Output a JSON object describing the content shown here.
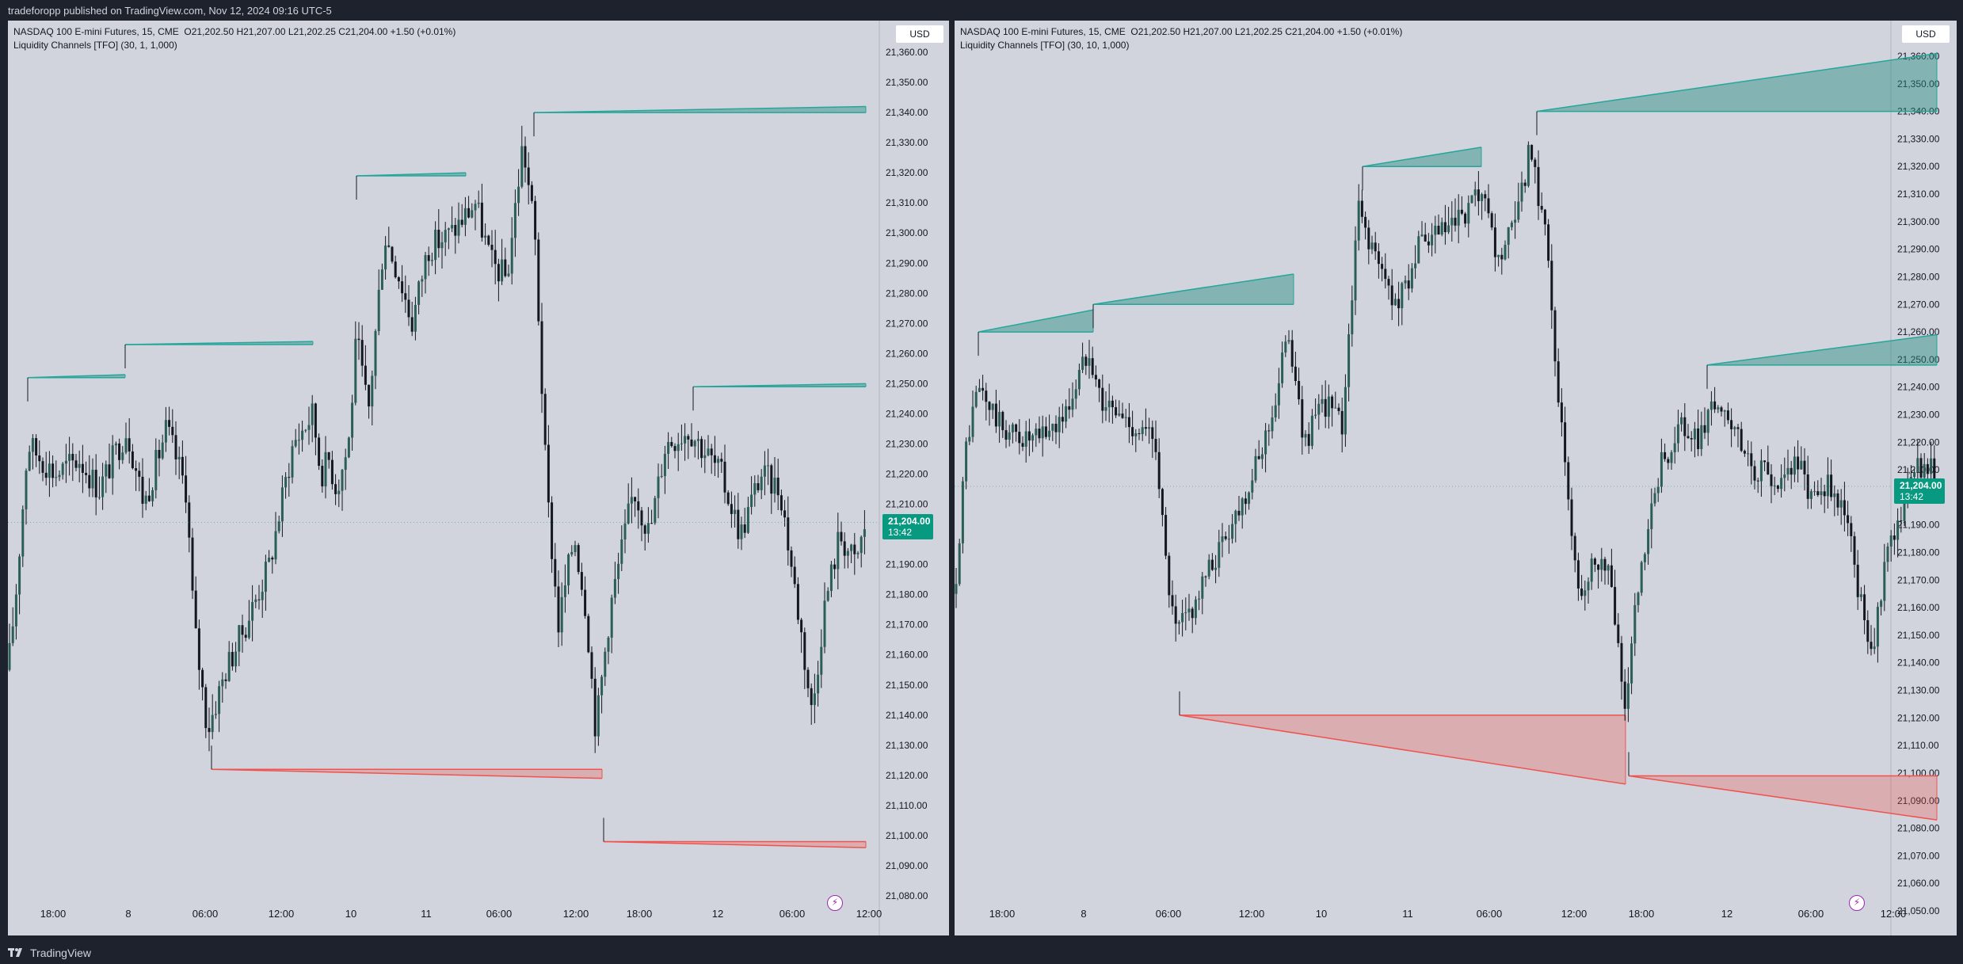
{
  "header": {
    "text": "tradeforopp published on TradingView.com, Nov 12, 2024 09:16 UTC-5"
  },
  "footer": {
    "brand": "TradingView"
  },
  "colors": {
    "bull": "#26a69a",
    "bear": "#ef5350",
    "candle": "#131722",
    "bg": "#d1d4dc",
    "last_price": "#089981"
  },
  "chart_data": [
    {
      "type": "candlestick",
      "title": "NASDAQ 100 E-mini Futures, 15, CME",
      "ohlc_text": "O21,202.50  H21,207.00  L21,202.25  C21,204.00  +1.50 (+0.01%)",
      "indicator": "Liquidity Channels [TFO] (30, 1, 1,000)",
      "currency": "USD",
      "last_price": "21,204.00",
      "countdown": "13:42",
      "ylim": [
        21075,
        21364
      ],
      "yticks": [
        21080,
        21090,
        21100,
        21110,
        21120,
        21130,
        21140,
        21150,
        21160,
        21170,
        21180,
        21190,
        21200,
        21210,
        21220,
        21230,
        21240,
        21250,
        21260,
        21270,
        21280,
        21290,
        21300,
        21310,
        21320,
        21330,
        21340,
        21350,
        21360
      ],
      "x_labels": [
        "18:00",
        "8",
        "06:00",
        "12:00",
        "10",
        "11",
        "06:00",
        "12:00",
        "18:00",
        "12",
        "06:00",
        "12:00"
      ],
      "path": [
        [
          0,
          21155
        ],
        [
          10,
          21180
        ],
        [
          25,
          21230
        ],
        [
          60,
          21220
        ],
        [
          90,
          21225
        ],
        [
          115,
          21215
        ],
        [
          150,
          21235
        ],
        [
          172,
          21210
        ],
        [
          200,
          21235
        ],
        [
          225,
          21215
        ],
        [
          235,
          21170
        ],
        [
          252,
          21135
        ],
        [
          275,
          21155
        ],
        [
          300,
          21170
        ],
        [
          330,
          21190
        ],
        [
          360,
          21230
        ],
        [
          385,
          21240
        ],
        [
          395,
          21220
        ],
        [
          405,
          21225
        ],
        [
          415,
          21215
        ],
        [
          430,
          21230
        ],
        [
          440,
          21265
        ],
        [
          455,
          21240
        ],
        [
          475,
          21300
        ],
        [
          495,
          21285
        ],
        [
          510,
          21270
        ],
        [
          530,
          21295
        ],
        [
          560,
          21300
        ],
        [
          590,
          21310
        ],
        [
          610,
          21290
        ],
        [
          630,
          21285
        ],
        [
          650,
          21330
        ],
        [
          665,
          21300
        ],
        [
          680,
          21215
        ],
        [
          695,
          21170
        ],
        [
          715,
          21200
        ],
        [
          730,
          21175
        ],
        [
          742,
          21135
        ],
        [
          760,
          21175
        ],
        [
          790,
          21215
        ],
        [
          810,
          21200
        ],
        [
          830,
          21230
        ],
        [
          860,
          21235
        ],
        [
          900,
          21220
        ],
        [
          925,
          21200
        ],
        [
          950,
          21220
        ],
        [
          975,
          21215
        ],
        [
          1000,
          21170
        ],
        [
          1015,
          21140
        ],
        [
          1030,
          21175
        ],
        [
          1050,
          21200
        ],
        [
          1070,
          21190
        ],
        [
          1083,
          21204
        ]
      ],
      "zones": [
        {
          "kind": "bull",
          "x0": 25,
          "y0": 21252,
          "x1": 148,
          "y1": 21253
        },
        {
          "kind": "bull",
          "x0": 148,
          "y0": 21263,
          "x1": 385,
          "y1": 21264
        },
        {
          "kind": "bull",
          "x0": 440,
          "y0": 21319,
          "x1": 578,
          "y1": 21320
        },
        {
          "kind": "bull",
          "x0": 664,
          "y0": 21340,
          "x1": 1083,
          "y1": 21342
        },
        {
          "kind": "bull",
          "x0": 865,
          "y0": 21249,
          "x1": 1083,
          "y1": 21250
        },
        {
          "kind": "bear",
          "x0": 257,
          "y0": 21122,
          "x1": 750,
          "y1": 21119
        },
        {
          "kind": "bear",
          "x0": 752,
          "y0": 21098,
          "x1": 1083,
          "y1": 21096
        }
      ]
    },
    {
      "type": "candlestick",
      "title": "NASDAQ 100 E-mini Futures, 15, CME",
      "ohlc_text": "O21,202.50  H21,207.00  L21,202.25  C21,204.00  +1.50 (+0.01%)",
      "indicator": "Liquidity Channels [TFO] (30, 10, 1,000)",
      "currency": "USD",
      "last_price": "21,204.00",
      "countdown": "13:42",
      "ylim": [
        21048,
        21368
      ],
      "yticks": [
        21050,
        21060,
        21070,
        21080,
        21090,
        21100,
        21110,
        21120,
        21130,
        21140,
        21150,
        21160,
        21170,
        21180,
        21190,
        21200,
        21210,
        21220,
        21230,
        21240,
        21250,
        21260,
        21270,
        21280,
        21290,
        21300,
        21310,
        21320,
        21330,
        21340,
        21350,
        21360
      ],
      "x_labels": [
        "18:00",
        "8",
        "06:00",
        "12:00",
        "10",
        "11",
        "06:00",
        "12:00",
        "18:00",
        "12",
        "06:00",
        "12:00"
      ],
      "path": [
        [
          0,
          21165
        ],
        [
          15,
          21220
        ],
        [
          30,
          21240
        ],
        [
          60,
          21225
        ],
        [
          100,
          21220
        ],
        [
          140,
          21230
        ],
        [
          170,
          21255
        ],
        [
          185,
          21235
        ],
        [
          230,
          21225
        ],
        [
          255,
          21220
        ],
        [
          265,
          21180
        ],
        [
          278,
          21150
        ],
        [
          300,
          21160
        ],
        [
          340,
          21185
        ],
        [
          380,
          21210
        ],
        [
          410,
          21240
        ],
        [
          420,
          21265
        ],
        [
          440,
          21220
        ],
        [
          470,
          21235
        ],
        [
          490,
          21225
        ],
        [
          495,
          21250
        ],
        [
          510,
          21305
        ],
        [
          540,
          21280
        ],
        [
          560,
          21270
        ],
        [
          585,
          21290
        ],
        [
          610,
          21295
        ],
        [
          640,
          21300
        ],
        [
          665,
          21310
        ],
        [
          685,
          21285
        ],
        [
          710,
          21300
        ],
        [
          725,
          21325
        ],
        [
          745,
          21300
        ],
        [
          770,
          21210
        ],
        [
          790,
          21165
        ],
        [
          810,
          21180
        ],
        [
          830,
          21170
        ],
        [
          845,
          21120
        ],
        [
          860,
          21160
        ],
        [
          890,
          21210
        ],
        [
          915,
          21225
        ],
        [
          940,
          21220
        ],
        [
          955,
          21235
        ],
        [
          980,
          21225
        ],
        [
          1010,
          21210
        ],
        [
          1040,
          21205
        ],
        [
          1060,
          21215
        ],
        [
          1080,
          21200
        ],
        [
          1100,
          21205
        ],
        [
          1125,
          21195
        ],
        [
          1145,
          21160
        ],
        [
          1160,
          21145
        ],
        [
          1175,
          21180
        ],
        [
          1200,
          21200
        ],
        [
          1225,
          21215
        ],
        [
          1240,
          21204
        ]
      ],
      "zones": [
        {
          "kind": "bull",
          "x0": 30,
          "y0": 21260,
          "x1": 175,
          "y1": 21268
        },
        {
          "kind": "bull",
          "x0": 175,
          "y0": 21270,
          "x1": 428,
          "y1": 21281
        },
        {
          "kind": "bull",
          "x0": 515,
          "y0": 21320,
          "x1": 665,
          "y1": 21327
        },
        {
          "kind": "bull",
          "x0": 735,
          "y0": 21340,
          "x1": 1240,
          "y1": 21361
        },
        {
          "kind": "bull",
          "x0": 950,
          "y0": 21248,
          "x1": 1240,
          "y1": 21259
        },
        {
          "kind": "bear",
          "x0": 284,
          "y0": 21121,
          "x1": 847,
          "y1": 21096
        },
        {
          "kind": "bear",
          "x0": 851,
          "y0": 21099,
          "x1": 1240,
          "y1": 21083
        }
      ]
    }
  ]
}
